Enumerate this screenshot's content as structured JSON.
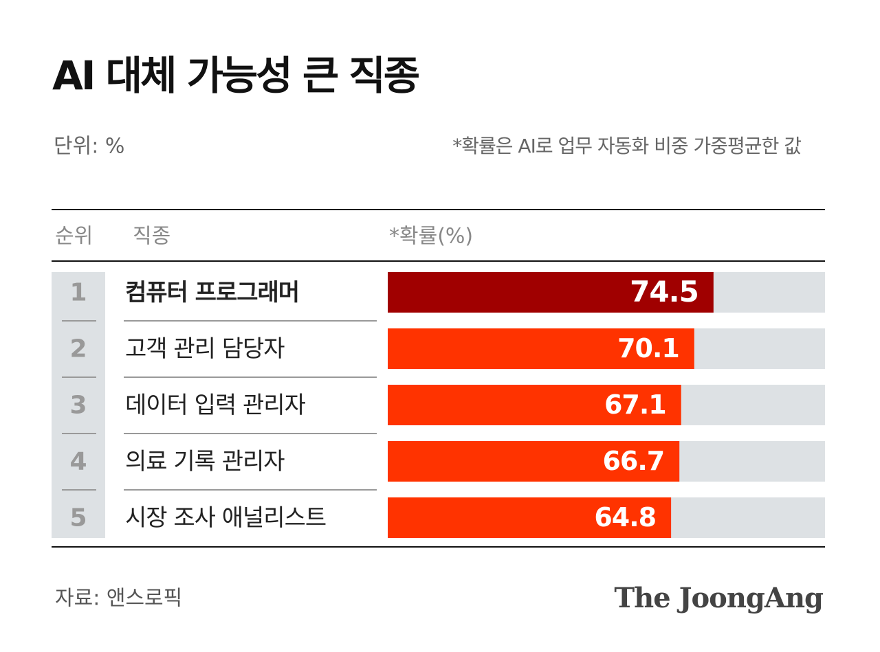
{
  "chart_data": {
    "type": "bar",
    "orientation": "horizontal",
    "title": "AI 대체 가능성 큰 직종",
    "subtitle": "단위: %",
    "note": "*확률은 AI로 업무 자동화 비중 가중평균한 값",
    "column_headers": [
      "순위",
      "직종",
      "*확률(%)"
    ],
    "ranks": [
      1,
      2,
      3,
      4,
      5
    ],
    "categories": [
      "컴퓨터 프로그래머",
      "고객 관리 담당자",
      "데이터 입력 관리자",
      "의료 기록 관리자",
      "시장 조사 애널리스트"
    ],
    "values": [
      74.5,
      70.1,
      67.1,
      66.7,
      64.8
    ],
    "colors": [
      "#a00000",
      "#ff3300",
      "#ff3300",
      "#ff3300",
      "#ff3300"
    ],
    "xlim": [
      0,
      100
    ],
    "source": "자료: 앤스로픽",
    "brand": "The JoongAng"
  }
}
